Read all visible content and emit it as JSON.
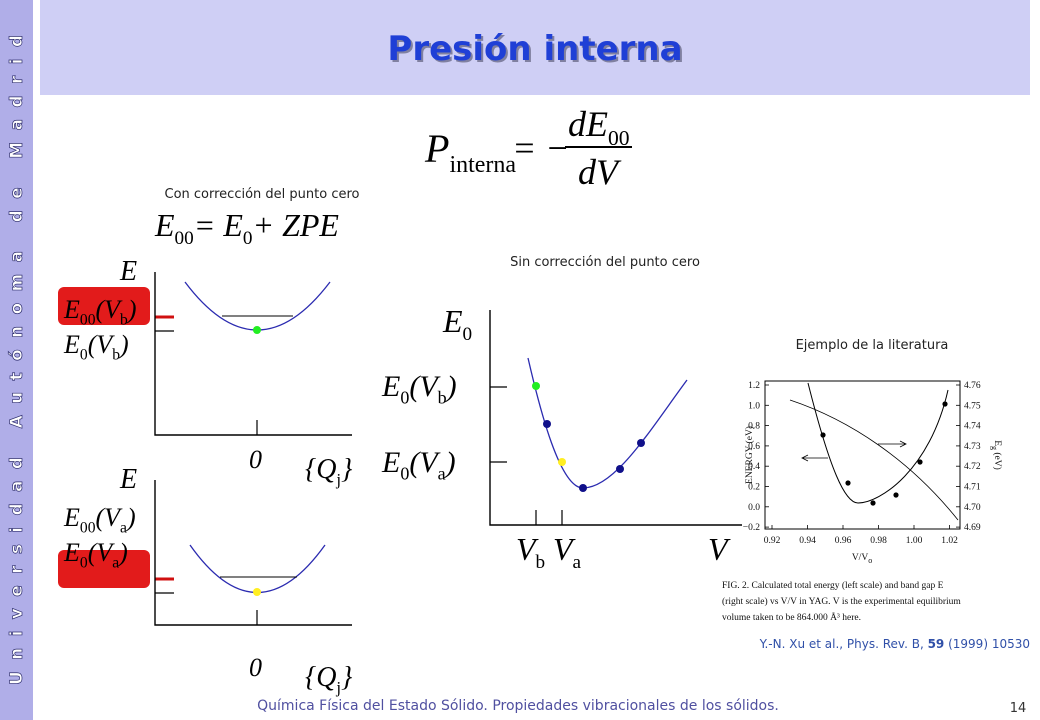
{
  "sidebar": "Universidad Autónoma de Madrid",
  "title": "Presión interna",
  "formula": {
    "lhs": [
      "P",
      "interna"
    ],
    "eq": "= −",
    "num": [
      "dE",
      "00"
    ],
    "den": [
      "dV"
    ]
  },
  "left": {
    "caption": "Con corrección del punto cero",
    "equation": [
      "E",
      "00",
      "= E",
      "0",
      "+ ZPE"
    ],
    "top": {
      "axis": [
        "E"
      ],
      "upper": [
        "E",
        "00",
        "(V",
        "b",
        ")"
      ],
      "lower": [
        "E",
        "0",
        "(V",
        "b",
        ")"
      ],
      "origin": [
        "0"
      ],
      "coord": [
        "{Q",
        "j",
        "}"
      ]
    },
    "bottom": {
      "axis": [
        "E"
      ],
      "upper": [
        "E",
        "00",
        "(V",
        "a",
        ")"
      ],
      "lower": [
        "E",
        "0",
        "(V",
        "a",
        ")"
      ],
      "origin": [
        "0"
      ],
      "coord": [
        "{Q",
        "j",
        "}"
      ]
    }
  },
  "middle": {
    "caption": "Sin corrección del punto cero",
    "axis": [
      "E",
      "0"
    ],
    "level_b": [
      "E",
      "0",
      "(V",
      "b",
      ")"
    ],
    "level_a": [
      "E",
      "0",
      "(V",
      "a",
      ")"
    ],
    "vb": [
      "V",
      "b"
    ],
    "va": [
      "V",
      "a"
    ],
    "v": [
      "V"
    ]
  },
  "literature": {
    "caption": "Ejemplo de la literatura",
    "left_ticks": [
      "1.2",
      "1.0",
      "0.8",
      "0.6",
      "0.4",
      "0.2",
      "0.0",
      "−0.2"
    ],
    "right_ticks": [
      "4.76",
      "4.75",
      "4.74",
      "4.73",
      "4.72",
      "4.71",
      "4.70",
      "4.69"
    ],
    "x_ticks": [
      "0.92",
      "0.94",
      "0.96",
      "0.98",
      "1.00",
      "1.02"
    ],
    "y_label": "ENERGY (eV)",
    "y2_label": "E",
    "y2_label_sub": "g",
    "y2_label_unit": " (eV)",
    "x_label": "V/V",
    "x_label_sub": "o",
    "figure_caption": [
      "FIG. 2. Calculated total energy (left scale) and band gap E",
      "(right scale) vs V/V",
      " in YAG.  V",
      " is the experimental equilibrium",
      "volume taken to be 864.000 Å³ here."
    ],
    "reference": {
      "authors": "Y.-N. Xu et al., Phys. Rev. B, ",
      "volume": "59",
      "rest": " (1999) 10530"
    }
  },
  "footer": "Química Física del Estado Sólido. Propiedades vibracionales de los sólidos.",
  "page": "14"
}
